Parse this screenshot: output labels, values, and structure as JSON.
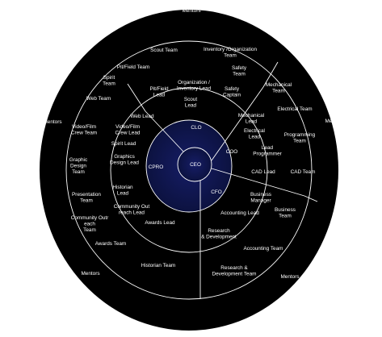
{
  "diagram": {
    "colors": {
      "background": "#000000",
      "center": "#131a5c",
      "lines": "#ffffff",
      "text": "#ffffff"
    },
    "center": {
      "label": "CEO"
    },
    "officers": {
      "clo": "CLO",
      "coo": "COO",
      "cfo": "CFO",
      "cpro": "CPRO"
    },
    "leads": {
      "organization_inventory": [
        "Organization /",
        "Inventory Lead"
      ],
      "pit_field": [
        "Pit/Field",
        "Lead"
      ],
      "scout": [
        "Scout",
        "Lead"
      ],
      "safety_captain": [
        "Safety",
        "Captain"
      ],
      "mechanical": [
        "Mechanical",
        "Lead"
      ],
      "electrical": [
        "Electrical",
        "Lead"
      ],
      "lead_programmer": [
        "Lead",
        "Programmer"
      ],
      "cad": [
        "CAD Lead"
      ],
      "business_manager": [
        "Business",
        "Manager"
      ],
      "accounting": [
        "Accounting Lead"
      ],
      "research_development": [
        "Research",
        "& Development"
      ],
      "awards": [
        "Awards Lead"
      ],
      "community_outreach": [
        "Community Out",
        "reach Lead"
      ],
      "historian": [
        "Historian",
        "Lead"
      ],
      "graphics_design": [
        "Graphics",
        "Design Lead"
      ],
      "spirit": [
        "Spirit Lead"
      ],
      "video_film": [
        "Video/Film",
        "Crew Lead"
      ],
      "web": [
        "Web Lead"
      ]
    },
    "teams": {
      "scout": [
        "Scout Team"
      ],
      "inventory_organization": [
        "Inventory /Organization",
        "Team"
      ],
      "pit_field": [
        "Pit/Field Team"
      ],
      "safety": [
        "Safety",
        "Team"
      ],
      "mechanical": [
        "Mechanical",
        "Team"
      ],
      "electrical": [
        "Electrical Team"
      ],
      "programming": [
        "Programming",
        "Team"
      ],
      "cad": [
        "CAD Team"
      ],
      "business": [
        "Business",
        "Team"
      ],
      "accounting": [
        "Accounting Team"
      ],
      "research_development": [
        "Research &",
        "Development Team"
      ],
      "historian": [
        "Historian Team"
      ],
      "awards": [
        "Awards Team"
      ],
      "community_outreach": [
        "Community Outr",
        "each",
        "Team"
      ],
      "presentation": [
        "Presentation",
        "Team"
      ],
      "graphic_design": [
        "Graphic",
        "Design",
        "Team"
      ],
      "video_film": [
        "Video/Film",
        "Crew Team"
      ],
      "web": [
        "Web Team"
      ],
      "spirit": [
        "Spirit",
        "Team"
      ]
    },
    "mentors": [
      "Mentors",
      "Mentors",
      "Mentors",
      "Mentors",
      "Mentors"
    ]
  }
}
